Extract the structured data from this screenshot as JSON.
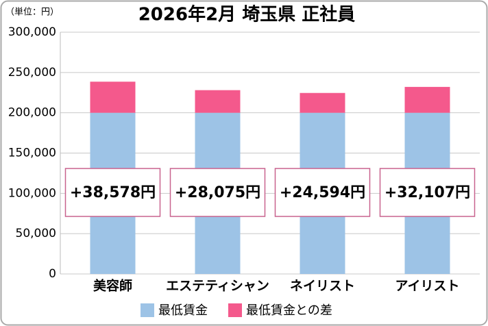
{
  "chart_data": {
    "type": "stacked_bar",
    "title": "2026年2月 埼玉県 正社員",
    "unit_label": "（単位：円）",
    "categories": [
      "美容師",
      "エステティシャン",
      "ネイリスト",
      "アイリスト"
    ],
    "series": [
      {
        "name": "最低賃金",
        "color": "#9dc3e6",
        "values": [
          200000,
          200000,
          200000,
          200000
        ]
      },
      {
        "name": "最低賃金との差",
        "color": "#f4598c",
        "values": [
          38578,
          28075,
          24594,
          32107
        ],
        "value_labels": [
          "+38,578円",
          "+28,075円",
          "+24,594円",
          "+32,107円"
        ]
      }
    ],
    "ylim": [
      0,
      300000
    ],
    "yticks": [
      0,
      {
        "value": 50000,
        "label": "50,000"
      },
      {
        "value": 100000,
        "label": "100,000"
      },
      {
        "value": 150000,
        "label": "150,000"
      },
      {
        "value": 200000,
        "label": "200,000"
      },
      {
        "value": 250000,
        "label": "250,000"
      },
      {
        "value": 300000,
        "label": "300,000"
      }
    ],
    "grid": true
  }
}
